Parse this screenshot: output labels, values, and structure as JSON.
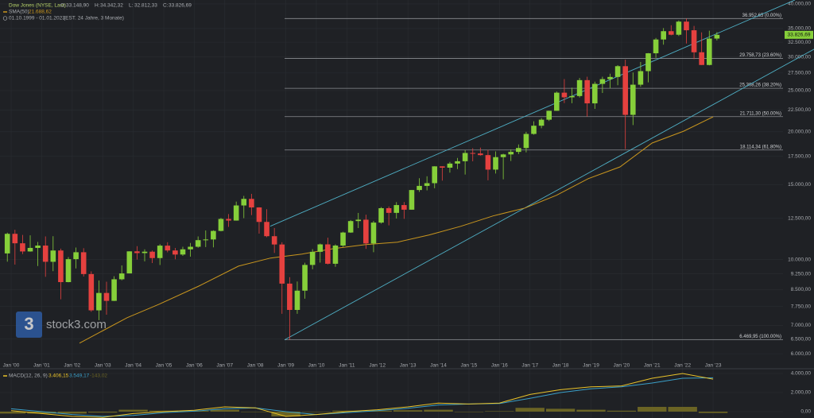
{
  "chart_data": {
    "type": "candlestick",
    "log_scale": true,
    "grid": true,
    "title": "Dow Jones (NYSE, Last)",
    "ohlc_labels": [
      {
        "key": "O:",
        "text": "33.148,90"
      },
      {
        "key": "H:",
        "text": "34.342,32"
      },
      {
        "key": "L:",
        "text": "32.812,33"
      },
      {
        "key": "C:",
        "text": "33.826,69"
      }
    ],
    "date_range": "01.10.1999 - 01.01.2023",
    "date_note": "(EST. 24 Jahre, 3 Monate)",
    "last_price_label": "33.826,69",
    "watermark_logo": "3",
    "watermark": "stock3.com",
    "up_color": "#86cf3a",
    "down_color": "#e5413f",
    "xlim": [
      1999.635,
      2025.29
    ],
    "ylim": [
      5750,
      40860
    ],
    "xticks": [
      {
        "value": 2000,
        "label": "Jan '00"
      },
      {
        "value": 2001,
        "label": "Jan '01"
      },
      {
        "value": 2002,
        "label": "Jan '02"
      },
      {
        "value": 2003,
        "label": "Jan '03"
      },
      {
        "value": 2004,
        "label": "Jan '04"
      },
      {
        "value": 2005,
        "label": "Jan '05"
      },
      {
        "value": 2006,
        "label": "Jan '06"
      },
      {
        "value": 2007,
        "label": "Jan '07"
      },
      {
        "value": 2008,
        "label": "Jan '08"
      },
      {
        "value": 2009,
        "label": "Jan '09"
      },
      {
        "value": 2010,
        "label": "Jan '10"
      },
      {
        "value": 2011,
        "label": "Jan '11"
      },
      {
        "value": 2012,
        "label": "Jan '12"
      },
      {
        "value": 2013,
        "label": "Jan '13"
      },
      {
        "value": 2014,
        "label": "Jan '14"
      },
      {
        "value": 2015,
        "label": "Jan '15"
      },
      {
        "value": 2016,
        "label": "Jan '16"
      },
      {
        "value": 2017,
        "label": "Jan '17"
      },
      {
        "value": 2018,
        "label": "Jan '18"
      },
      {
        "value": 2019,
        "label": "Jan '19"
      },
      {
        "value": 2020,
        "label": "Jan '20"
      },
      {
        "value": 2021,
        "label": "Jan '21"
      },
      {
        "value": 2022,
        "label": "Jan '22"
      },
      {
        "value": 2023,
        "label": "Jan '23"
      }
    ],
    "yticks": [
      {
        "value": 6000,
        "label": "6.000,00"
      },
      {
        "value": 6500,
        "label": "6.500,00"
      },
      {
        "value": 7000,
        "label": "7.000,00"
      },
      {
        "value": 7750,
        "label": "7.750,00"
      },
      {
        "value": 8500,
        "label": "8.500,00"
      },
      {
        "value": 9250,
        "label": "9.250,00"
      },
      {
        "value": 10000,
        "label": "10.000,00"
      },
      {
        "value": 12500,
        "label": "12.500,00"
      },
      {
        "value": 15000,
        "label": "15.000,00"
      },
      {
        "value": 17500,
        "label": "17.500,00"
      },
      {
        "value": 20000,
        "label": "20.000,00"
      },
      {
        "value": 22500,
        "label": "22.500,00"
      },
      {
        "value": 25000,
        "label": "25.000,00"
      },
      {
        "value": 27500,
        "label": "27.500,00"
      },
      {
        "value": 30000,
        "label": "30.000,00"
      },
      {
        "value": 32500,
        "label": "32.500,00"
      },
      {
        "value": 35000,
        "label": "35.000,00"
      },
      {
        "value": 40000,
        "label": "40.000,00"
      }
    ],
    "x": [
      1999.75,
      2000,
      2000.25,
      2000.5,
      2000.75,
      2001,
      2001.25,
      2001.5,
      2001.75,
      2002,
      2002.25,
      2002.5,
      2002.75,
      2003,
      2003.25,
      2003.5,
      2003.75,
      2004,
      2004.25,
      2004.5,
      2004.75,
      2005,
      2005.25,
      2005.5,
      2005.75,
      2006,
      2006.25,
      2006.5,
      2006.75,
      2007,
      2007.25,
      2007.5,
      2007.75,
      2008,
      2008.25,
      2008.5,
      2008.75,
      2009,
      2009.25,
      2009.5,
      2009.75,
      2010,
      2010.25,
      2010.5,
      2010.75,
      2011,
      2011.25,
      2011.5,
      2011.75,
      2012,
      2012.25,
      2012.5,
      2012.75,
      2013,
      2013.25,
      2013.5,
      2013.75,
      2014,
      2014.25,
      2014.5,
      2014.75,
      2015,
      2015.25,
      2015.5,
      2015.75,
      2016,
      2016.25,
      2016.5,
      2016.75,
      2017,
      2017.25,
      2017.5,
      2017.75,
      2018,
      2018.25,
      2018.5,
      2018.75,
      2019,
      2019.25,
      2019.5,
      2019.75,
      2020,
      2020.25,
      2020.5,
      2020.75,
      2021,
      2021.25,
      2021.5,
      2021.75,
      2022,
      2022.25,
      2022.5,
      2022.75,
      2023
    ],
    "open": [
      10337,
      11497,
      10922,
      10448,
      10651,
      10787,
      9879,
      10502,
      8848,
      10021,
      10404,
      9243,
      7592,
      8342,
      7992,
      8985,
      9275,
      10454,
      10357,
      10435,
      10080,
      10783,
      10504,
      10275,
      10569,
      10718,
      11109,
      11150,
      11679,
      12463,
      12354,
      13409,
      13896,
      13265,
      12263,
      11350,
      10851,
      8776,
      7609,
      8447,
      9712,
      10428,
      10857,
      9774,
      10788,
      11578,
      12320,
      12414,
      10913,
      12218,
      13212,
      12880,
      13437,
      13104,
      14579,
      14910,
      15130,
      16577,
      16458,
      16827,
      17043,
      17823,
      17776,
      17620,
      16285,
      17425,
      17685,
      17930,
      18308,
      19763,
      20663,
      21350,
      22405,
      24719,
      24103,
      24271,
      26458,
      23327,
      25929,
      26600,
      26917,
      28538,
      21917,
      25813,
      27782,
      30606,
      32982,
      34503,
      33844,
      36338,
      34678,
      30775,
      28726,
      33148.9
    ],
    "high": [
      11568,
      11750,
      11425,
      11401,
      11000,
      11337,
      11350,
      10610,
      10136,
      10673,
      10635,
      9380,
      8927,
      8869,
      9136,
      9687,
      10454,
      10753,
      10570,
      10500,
      10868,
      10984,
      10650,
      10720,
      10940,
      11335,
      11709,
      11718,
      12529,
      12795,
      13692,
      14121,
      14279,
      13279,
      13136,
      11867,
      10983,
      9088,
      8877,
      9829,
      10580,
      10907,
      11258,
      10860,
      11625,
      12391,
      12876,
      12753,
      12328,
      13290,
      13338,
      13653,
      13661,
      14585,
      15542,
      15709,
      16588,
      16588,
      16978,
      17350,
      18103,
      18289,
      18351,
      18137,
      17978,
      17751,
      18168,
      18668,
      19987,
      21169,
      21535,
      22420,
      24876,
      26617,
      25399,
      26770,
      26952,
      26241,
      26952,
      27399,
      28702,
      29569,
      27580,
      29199,
      30637,
      33259,
      35091,
      35631,
      36566,
      36953,
      35492,
      34281,
      34595,
      34342.32
    ],
    "low": [
      9885,
      9731,
      10300,
      10434,
      9654,
      9106,
      9389,
      8062,
      8836,
      9529,
      9120,
      7532,
      7197,
      7416,
      7986,
      8936,
      9275,
      10000,
      9900,
      9814,
      9708,
      10400,
      10012,
      10200,
      10156,
      10660,
      10700,
      10683,
      11650,
      11939,
      12350,
      12518,
      12725,
      11508,
      11287,
      10365,
      7450,
      6470,
      7450,
      8087,
      9487,
      9835,
      9741,
      9614,
      10711,
      11555,
      11862,
      10597,
      10404,
      12150,
      12035,
      12492,
      12471,
      13104,
      14434,
      14551,
      14720,
      15341,
      16016,
      16333,
      15855,
      17037,
      17566,
      15370,
      15942,
      15451,
      17063,
      17713,
      17884,
      19678,
      20379,
      21197,
      22405,
      23360,
      23344,
      24078,
      21713,
      22639,
      24680,
      25339,
      25743,
      18214,
      20735,
      25524,
      26144,
      29856,
      32072,
      33741,
      33613,
      32272,
      29653,
      28715,
      28661,
      32812.33
    ],
    "close": [
      11497,
      10922,
      10448,
      10651,
      10787,
      9879,
      10502,
      8848,
      10021,
      10404,
      9243,
      7592,
      8342,
      7992,
      8985,
      9275,
      10454,
      10357,
      10435,
      10080,
      10783,
      10504,
      10275,
      10569,
      10718,
      11109,
      11150,
      11679,
      12463,
      12354,
      13409,
      13896,
      13265,
      12263,
      11350,
      10851,
      8776,
      7609,
      8447,
      9712,
      10428,
      10857,
      9774,
      10788,
      11578,
      12320,
      12414,
      10913,
      12218,
      13212,
      12880,
      13437,
      13104,
      14579,
      14910,
      15130,
      16577,
      16458,
      16827,
      17043,
      17823,
      17776,
      17620,
      16285,
      17425,
      17685,
      17930,
      18308,
      19763,
      20663,
      21350,
      22405,
      24719,
      24103,
      24271,
      26458,
      23327,
      25929,
      26600,
      26917,
      28538,
      21917,
      25813,
      27782,
      30606,
      32982,
      34503,
      33844,
      36338,
      34678,
      30775,
      28726,
      33147,
      33826.69
    ],
    "sma": {
      "name": "SMA(50)",
      "value_label": "21.688,62",
      "color": "#c9961e",
      "x": [
        2002.24,
        2003.8,
        2004.85,
        2006.15,
        2007.45,
        2008.5,
        2009.53,
        2010.58,
        2011.62,
        2012.66,
        2013.7,
        2014.74,
        2015.79,
        2016.83,
        2017.87,
        2018.91,
        2019.95,
        2021.0,
        2022.04,
        2023.0
      ],
      "values": [
        6355,
        7295,
        7850,
        8660,
        9650,
        10080,
        10300,
        10615,
        10850,
        10990,
        11430,
        11980,
        12670,
        13220,
        14170,
        15510,
        16530,
        18810,
        20070,
        21688.62
      ]
    },
    "channel_color": "#4fb0c6",
    "channel": [
      {
        "x": [
          2008.49,
          2025.68
        ],
        "values": [
          11980,
          40870
        ]
      },
      {
        "x": [
          2008.96,
          2026.31
        ],
        "values": [
          6470,
          31300
        ]
      }
    ],
    "fib_color": "#8a8d92",
    "fib_x": [
      2008.96,
      2025.29
    ],
    "fib_levels": [
      {
        "value": 36952.65,
        "label": "36.952,65 (0.00%)"
      },
      {
        "value": 29758.73,
        "label": "29.758,73 (23.60%)"
      },
      {
        "value": 25308.26,
        "label": "25.308,26 (38.20%)"
      },
      {
        "value": 21711.3,
        "label": "21.711,30 (50.00%)"
      },
      {
        "value": 18114.34,
        "label": "18.114,34 (61.80%)"
      },
      {
        "value": 6469.95,
        "label": "6.469,95 (100.00%)"
      }
    ],
    "macd": {
      "title": "MACD(12, 26, 9)",
      "value_labels": [
        "3.406,15",
        "3.549,17",
        "-143,02"
      ],
      "macd_color": "#e8c22a",
      "signal_color": "#3a9fc8",
      "hist_color": "#6b6424",
      "ylim": [
        -667,
        4333
      ],
      "yticks": [
        {
          "value": 0,
          "label": "0,00"
        },
        {
          "value": 2000,
          "label": "2.000,00"
        },
        {
          "value": 4000,
          "label": "4.000,00"
        }
      ],
      "x": [
        2000,
        2001,
        2002,
        2003,
        2004,
        2005,
        2006,
        2007,
        2008,
        2009,
        2010,
        2011,
        2012,
        2013,
        2014,
        2015,
        2016,
        2017,
        2018,
        2019,
        2020,
        2021,
        2022,
        2023
      ],
      "macd_values": [
        100,
        -200,
        -500,
        -600,
        -200,
        0,
        150,
        500,
        400,
        -500,
        -300,
        0,
        200,
        500,
        900,
        800,
        900,
        1800,
        2300,
        2600,
        2700,
        3500,
        4000,
        3406.15
      ],
      "signal_values": [
        300,
        0,
        -300,
        -500,
        -400,
        -100,
        50,
        300,
        400,
        0,
        -300,
        -100,
        100,
        350,
        700,
        800,
        850,
        1400,
        2000,
        2400,
        2600,
        3000,
        3500,
        3549.17
      ],
      "histogram": [
        -200,
        -200,
        -200,
        -100,
        200,
        100,
        100,
        200,
        0,
        -500,
        0,
        100,
        100,
        150,
        200,
        0,
        50,
        400,
        300,
        200,
        100,
        500,
        500,
        -143.02
      ]
    }
  }
}
